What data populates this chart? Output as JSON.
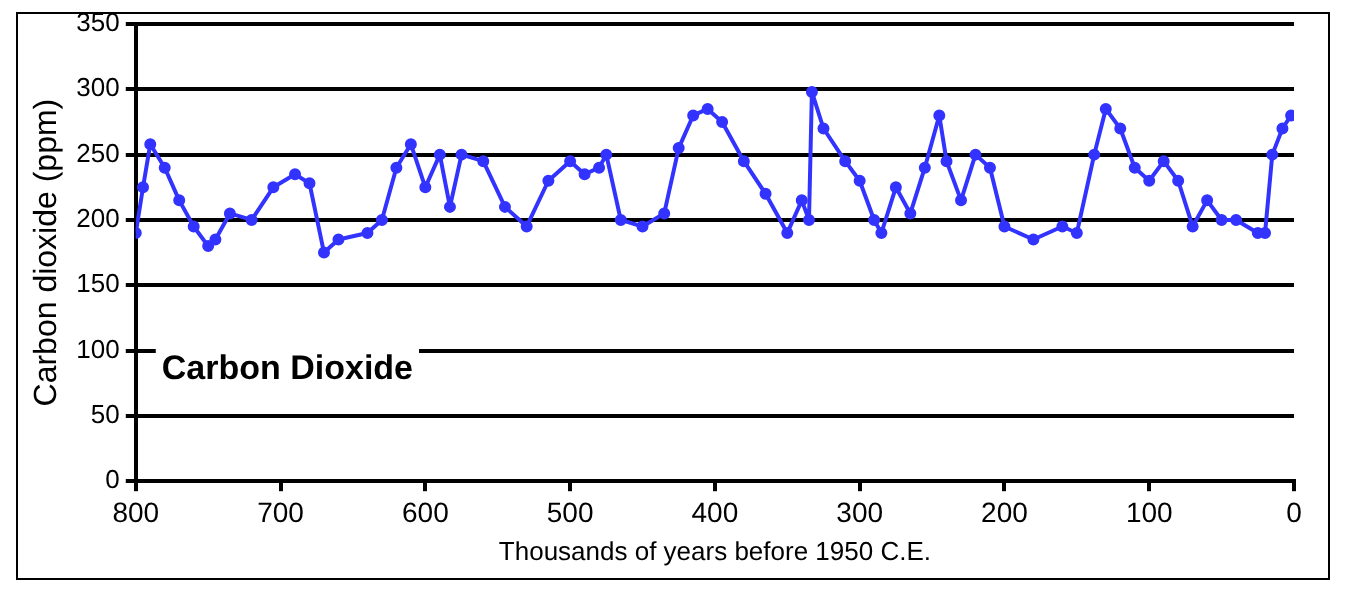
{
  "chart_data": {
    "type": "line",
    "xlabel": "Thousands of years before 1950 C.E.",
    "ylabel": "Carbon dioxide (ppm)",
    "annotations": [
      "Carbon Dioxide"
    ],
    "xlim": [
      800,
      0
    ],
    "xticks": [
      800,
      700,
      600,
      500,
      400,
      300,
      200,
      100,
      0
    ],
    "ylim": [
      0,
      350
    ],
    "yticks": [
      0,
      50,
      100,
      150,
      200,
      250,
      300,
      350
    ],
    "grid": "y",
    "legend": false,
    "marker": "circle",
    "line_style": "solid",
    "series": [
      {
        "color": "#3333ff",
        "x": [
          800,
          795,
          790,
          780,
          770,
          760,
          750,
          745,
          735,
          720,
          705,
          690,
          680,
          670,
          660,
          640,
          630,
          620,
          610,
          600,
          590,
          583,
          575,
          560,
          545,
          530,
          515,
          500,
          490,
          480,
          475,
          465,
          450,
          435,
          425,
          415,
          405,
          395,
          380,
          365,
          350,
          340,
          335,
          333,
          325,
          310,
          300,
          290,
          285,
          275,
          265,
          255,
          245,
          240,
          230,
          220,
          210,
          200,
          180,
          160,
          150,
          138,
          130,
          120,
          110,
          100,
          90,
          80,
          70,
          60,
          50,
          40,
          25,
          20,
          15,
          8,
          2
        ],
        "values": [
          190,
          225,
          258,
          240,
          215,
          195,
          180,
          185,
          205,
          200,
          225,
          235,
          228,
          175,
          185,
          190,
          200,
          240,
          258,
          225,
          250,
          210,
          250,
          245,
          210,
          195,
          230,
          245,
          235,
          240,
          250,
          200,
          195,
          205,
          255,
          280,
          285,
          275,
          245,
          220,
          190,
          215,
          200,
          298,
          270,
          245,
          230,
          200,
          190,
          225,
          205,
          240,
          280,
          245,
          215,
          250,
          240,
          195,
          185,
          195,
          190,
          250,
          285,
          270,
          240,
          230,
          245,
          230,
          195,
          215,
          200,
          200,
          190,
          190,
          250,
          270,
          280
        ]
      }
    ]
  }
}
